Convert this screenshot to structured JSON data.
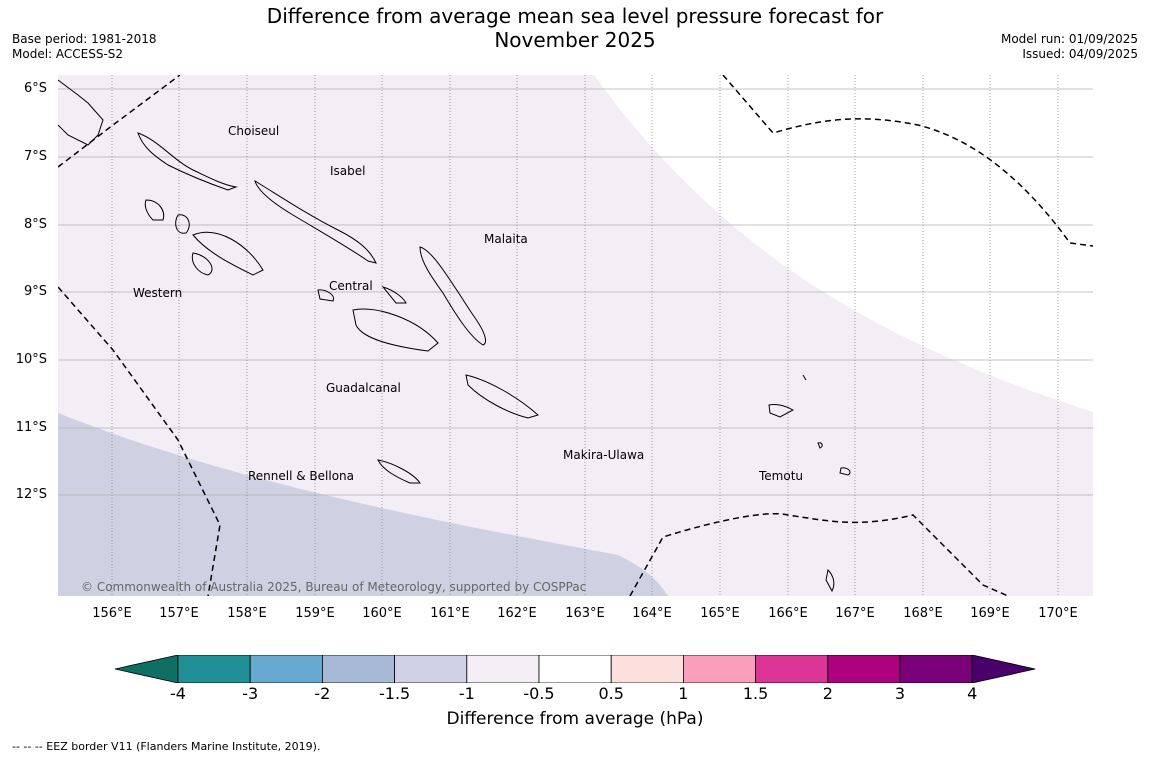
{
  "header": {
    "title_line1": "Difference from average mean sea level pressure forecast for",
    "title_line2": "November 2025",
    "base_period": "Base period: 1981-2018",
    "model": "Model: ACCESS-S2",
    "model_run": "Model run: 01/09/2025",
    "issued": "Issued: 04/09/2025"
  },
  "map": {
    "lat_ticks": [
      "6°S",
      "7°S",
      "8°S",
      "9°S",
      "10°S",
      "11°S",
      "12°S"
    ],
    "lon_ticks": [
      "156°E",
      "157°E",
      "158°E",
      "159°E",
      "160°E",
      "161°E",
      "162°E",
      "163°E",
      "164°E",
      "165°E",
      "166°E",
      "167°E",
      "168°E",
      "169°E",
      "170°E"
    ],
    "regions": {
      "choiseul": "Choiseul",
      "isabel": "Isabel",
      "malaita": "Malaita",
      "western": "Western",
      "central": "Central",
      "guadalcanal": "Guadalcanal",
      "makira_ulawa": "Makira-Ulawa",
      "temotu": "Temotu",
      "rennell_bellona": "Rennell & Bellona"
    },
    "copyright": "© Commonwealth of Australia 2025, Bureau of Meteorology, supported by COSPPac",
    "region_fill_colors": {
      "minus_1_to_minus_0_5": "#f3edf6",
      "minus_1_5_to_minus_1": "#cfd1e3",
      "neutral": "#ffffff"
    }
  },
  "colorbar": {
    "ticks": [
      "-4",
      "-3",
      "-2",
      "-1.5",
      "-1",
      "-0.5",
      "0.5",
      "1",
      "1.5",
      "2",
      "3",
      "4"
    ],
    "colors": [
      "#0e6f62",
      "#218f97",
      "#67a9cf",
      "#a6b9d6",
      "#d0d1e6",
      "#f4eef6",
      "#ffffff",
      "#fde0dd",
      "#f99fbb",
      "#dd3497",
      "#ae017e",
      "#7a0177",
      "#49006a"
    ],
    "label": "Difference from average (hPa)"
  },
  "legend": {
    "eez_note": "--  --  -- EEZ border V11 (Flanders Marine Institute, 2019)."
  }
}
